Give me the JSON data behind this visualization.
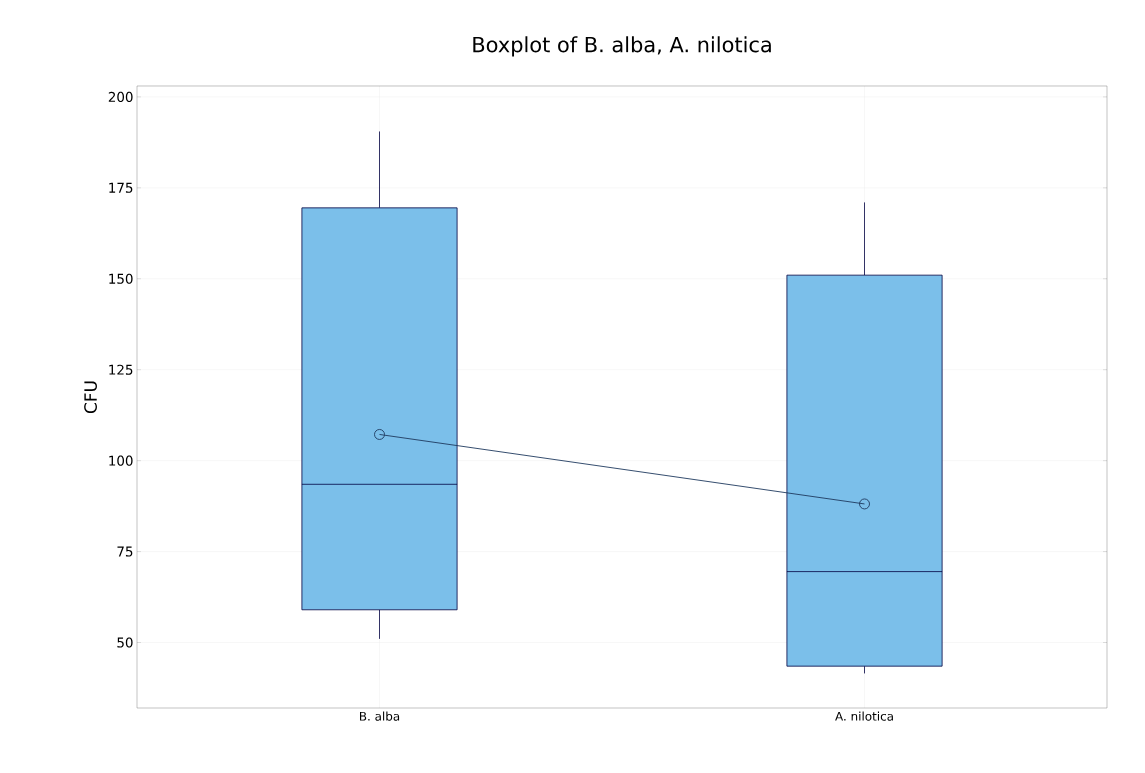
{
  "chart_data": {
    "type": "box",
    "title": "Boxplot of B. alba, A. nilotica",
    "ylabel": "CFU",
    "categories": [
      "B. alba",
      "A. nilotica"
    ],
    "boxes": [
      {
        "low": 51,
        "q1": 59,
        "median": 93.5,
        "q3": 169.5,
        "high": 190.5
      },
      {
        "low": 41.5,
        "q1": 43.5,
        "median": 69.5,
        "q3": 151,
        "high": 171
      }
    ],
    "color": "#7bbfea",
    "series": [
      {
        "type": "line",
        "values": [
          107.2,
          88.1
        ],
        "color": "#1f3a5f",
        "marker": "circle"
      }
    ],
    "ylim": [
      32,
      203
    ],
    "yticks": [
      50,
      75,
      100,
      125,
      150,
      175,
      200
    ],
    "grid": true
  }
}
